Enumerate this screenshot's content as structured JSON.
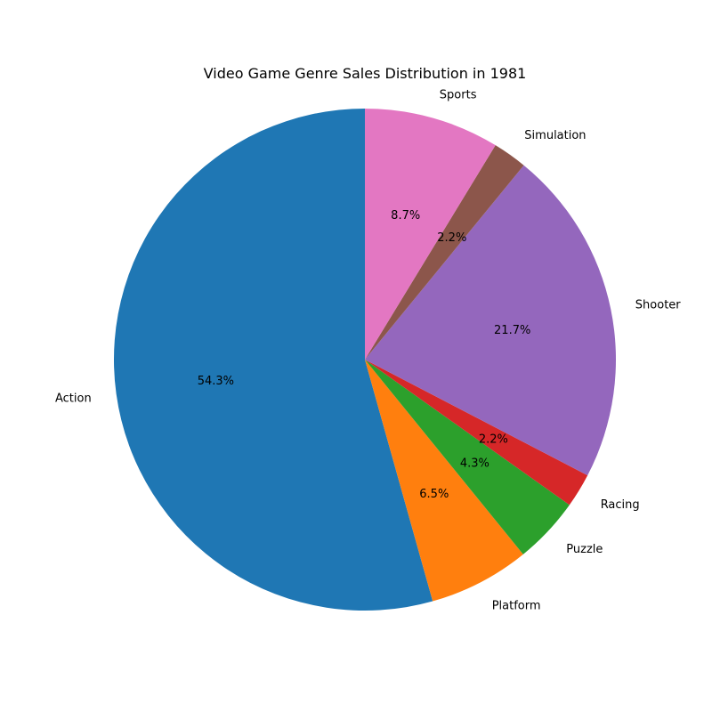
{
  "chart_data": {
    "type": "pie",
    "title": "Video Game Genre Sales Distribution in 1981",
    "start_angle_deg": 90,
    "direction": "counterclockwise",
    "slices": [
      {
        "label": "Action",
        "value": 54.3,
        "pct_text": "54.3%",
        "color": "#1f77b4"
      },
      {
        "label": "Platform",
        "value": 6.5,
        "pct_text": "6.5%",
        "color": "#ff7f0e"
      },
      {
        "label": "Puzzle",
        "value": 4.3,
        "pct_text": "4.3%",
        "color": "#2ca02c"
      },
      {
        "label": "Racing",
        "value": 2.2,
        "pct_text": "2.2%",
        "color": "#d62728"
      },
      {
        "label": "Shooter",
        "value": 21.7,
        "pct_text": "21.7%",
        "color": "#9467bd"
      },
      {
        "label": "Simulation",
        "value": 2.2,
        "pct_text": "2.2%",
        "color": "#8c564b"
      },
      {
        "label": "Sports",
        "value": 8.7,
        "pct_text": "8.7%",
        "color": "#e377c2"
      }
    ]
  }
}
